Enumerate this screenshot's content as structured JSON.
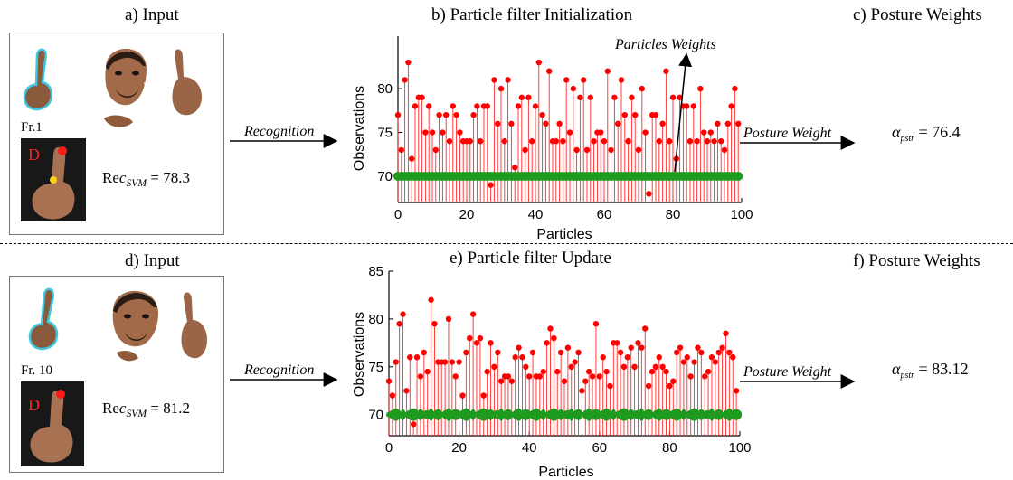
{
  "top": {
    "input_title": "a) Input",
    "chart_title": "b) Particle filter Initialization",
    "weights_title": "c) Posture Weights",
    "frame_label": "Fr.1",
    "gesture_letter": "D",
    "rec_value": "78.3",
    "recognition_label": "Recognition",
    "posture_weight_label": "Posture Weight",
    "annotation": "Particles Weights",
    "alpha_value": "76.4"
  },
  "bottom": {
    "input_title": "d) Input",
    "chart_title": "e) Particle filter Update",
    "weights_title": "f) Posture Weights",
    "frame_label": "Fr. 10",
    "gesture_letter": "D",
    "rec_value": "81.2",
    "recognition_label": "Recognition",
    "posture_weight_label": "Posture Weight",
    "alpha_value": "83.12"
  },
  "formula": {
    "rec_prefix": "Re",
    "rec_var": "c",
    "rec_sub": "SVM",
    "alpha_sym": "α",
    "alpha_sub": "pstr",
    "eq": "="
  },
  "colors": {
    "stem": "#ff2a2a",
    "marker": "#ff0000",
    "weight": "#1e9a1e",
    "outline": "#40c8e0"
  },
  "chart_data": [
    {
      "type": "scatter",
      "title": "b) Particle filter Initialization",
      "xlabel": "Particles",
      "ylabel": "Observations",
      "xlim": [
        0,
        100
      ],
      "ylim": [
        67,
        86
      ],
      "xticks": [
        "0",
        "20",
        "40",
        "60",
        "80",
        "100"
      ],
      "yticks": [
        "70",
        "75",
        "80"
      ],
      "series": [
        {
          "values": [
            77,
            73,
            81,
            83,
            72,
            78,
            79,
            79,
            75,
            78,
            75,
            73,
            77,
            75,
            77,
            74,
            78,
            77,
            75,
            74,
            74,
            74,
            77,
            78,
            74,
            78,
            78,
            69,
            81,
            76,
            80,
            74,
            81,
            76,
            71,
            78,
            79,
            73,
            79,
            74,
            78,
            83,
            77,
            76,
            82,
            74,
            74,
            76,
            74,
            81,
            75,
            80,
            73,
            79,
            81,
            73,
            79,
            74,
            75,
            75,
            74,
            82,
            73,
            79,
            76,
            81,
            77,
            74,
            79,
            77,
            73,
            80,
            75,
            68,
            77,
            77,
            74,
            76,
            82,
            74,
            79,
            72,
            79,
            78,
            78,
            74,
            78,
            74,
            80,
            75,
            74,
            75,
            74,
            76,
            74,
            73,
            76,
            78,
            80,
            76
          ]
        },
        {
          "values": [
            70,
            70,
            70,
            70,
            70,
            70,
            70,
            70,
            70,
            70,
            70,
            70,
            70,
            70,
            70,
            70,
            70,
            70,
            70,
            70,
            70,
            70,
            70,
            70,
            70,
            70,
            70,
            70,
            70,
            70,
            70,
            70,
            70,
            70,
            70,
            70,
            70,
            70,
            70,
            70,
            70,
            70,
            70,
            70,
            70,
            70,
            70,
            70,
            70,
            70,
            70,
            70,
            70,
            70,
            70,
            70,
            70,
            70,
            70,
            70,
            70,
            70,
            70,
            70,
            70,
            70,
            70,
            70,
            70,
            70,
            70,
            70,
            70,
            70,
            70,
            70,
            70,
            70,
            70,
            70,
            70,
            70,
            70,
            70,
            70,
            70,
            70,
            70,
            70,
            70,
            70,
            70,
            70,
            70,
            70,
            70,
            70,
            70,
            70,
            70
          ]
        }
      ]
    },
    {
      "type": "scatter",
      "title": "e) Particle filter Update",
      "xlabel": "Particles",
      "ylabel": "Observations",
      "xlim": [
        0,
        100
      ],
      "ylim": [
        67.8,
        85
      ],
      "xticks": [
        "0",
        "20",
        "40",
        "60",
        "80",
        "100"
      ],
      "yticks": [
        "70",
        "75",
        "80",
        "85"
      ],
      "series": [
        {
          "values": [
            73.5,
            72,
            75.5,
            79.5,
            80.5,
            72.5,
            76,
            69,
            76,
            74,
            76.5,
            74.5,
            82,
            79.5,
            75.5,
            75.5,
            75.5,
            80,
            75.5,
            74,
            75.5,
            72,
            76.5,
            78,
            80.5,
            77.5,
            78,
            72,
            74.5,
            77.5,
            75,
            76.5,
            73.5,
            74,
            74,
            73.5,
            76,
            77,
            76,
            75,
            74,
            76.5,
            74,
            74,
            74.5,
            77.5,
            79,
            78,
            74.5,
            76.5,
            73.5,
            77,
            75,
            75.5,
            76.5,
            72.5,
            73.5,
            74.5,
            74,
            79.5,
            74,
            76,
            74.5,
            73,
            77.5,
            77.5,
            76.5,
            75,
            76,
            77,
            75,
            77.5,
            77,
            79,
            73,
            74.5,
            75,
            76,
            75,
            74.5,
            73,
            73.5,
            76.5,
            77,
            75.5,
            76,
            74,
            75.5,
            77,
            76.5,
            74,
            74.5,
            76,
            75.5,
            76.5,
            77,
            78.5,
            76.5,
            76,
            72.5
          ]
        },
        {
          "values": [
            70,
            70,
            70,
            70,
            70,
            70,
            70,
            70,
            70,
            70,
            70,
            70,
            70,
            70,
            70,
            70,
            70,
            70,
            70,
            70,
            70,
            70,
            70,
            70,
            70,
            70,
            70,
            70,
            70,
            70,
            70,
            70,
            70,
            70,
            70,
            70,
            70,
            70,
            70,
            70,
            70,
            70,
            70,
            70,
            70,
            70,
            70,
            70,
            70,
            70,
            70,
            70,
            70,
            70,
            70,
            70,
            70,
            70,
            70,
            70,
            70,
            70,
            70,
            70,
            70,
            70,
            70,
            70,
            70,
            70,
            70,
            70,
            70,
            70,
            70,
            70,
            70,
            70,
            70,
            70,
            70,
            70,
            70,
            70,
            70,
            70,
            70,
            70,
            70,
            70,
            70,
            70,
            70,
            70,
            70,
            70,
            70,
            70,
            70,
            70
          ]
        }
      ]
    }
  ]
}
